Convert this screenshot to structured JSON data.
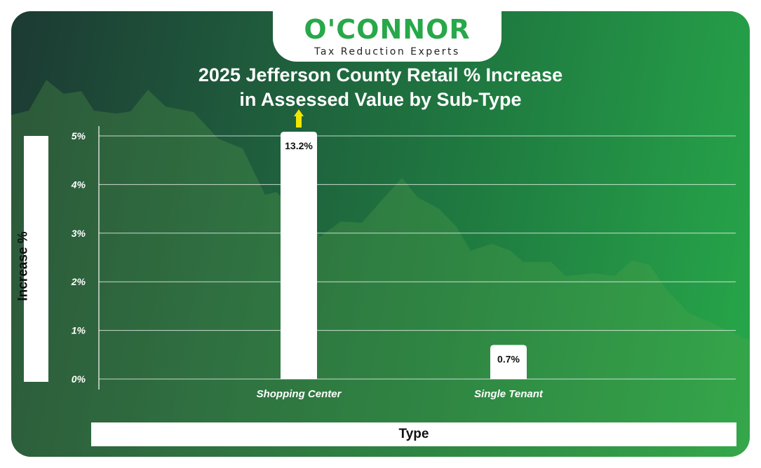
{
  "brand": {
    "name": "O'CONNOR",
    "tagline": "Tax Reduction Experts"
  },
  "colors": {
    "accent_green": "#27a84a",
    "arrow_yellow": "#f2e600",
    "bar_fill": "#ffffff"
  },
  "chart_data": {
    "type": "bar",
    "title": "2025 Jefferson County Retail % Increase in Assessed Value by Sub-Type",
    "title_lines": [
      "2025 Jefferson County Retail % Increase",
      "in Assessed Value by Sub-Type"
    ],
    "xlabel": "Type",
    "ylabel": "Increase %",
    "categories": [
      "Shopping Center",
      "Single Tenant"
    ],
    "values": [
      13.2,
      0.7
    ],
    "value_labels": [
      "13.2%",
      "0.7%"
    ],
    "ylim": [
      0,
      5
    ],
    "yticks": [
      0,
      1,
      2,
      3,
      4,
      5
    ],
    "ytick_labels": [
      "0%",
      "1%",
      "2%",
      "3%",
      "4%",
      "5%"
    ],
    "grid": true,
    "clipped_indicator": "up-arrow on bars exceeding axis max"
  }
}
